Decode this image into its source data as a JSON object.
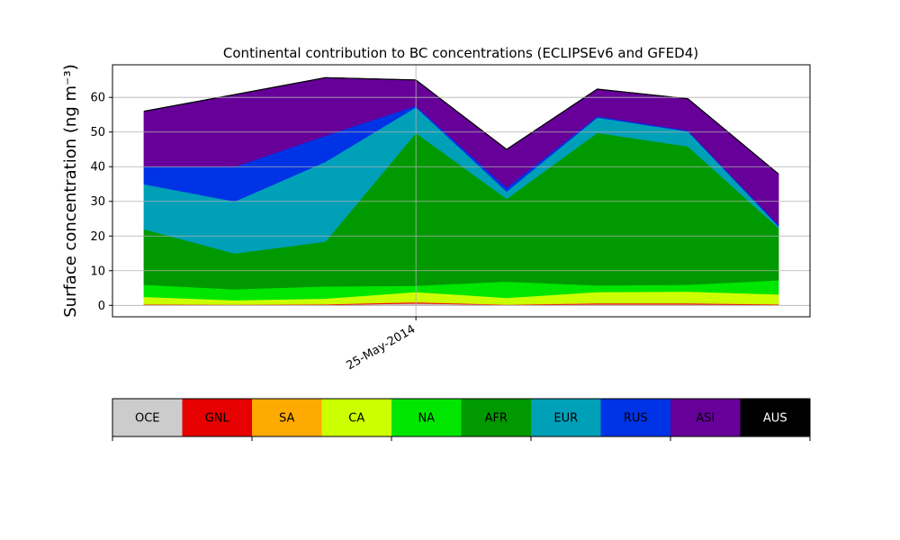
{
  "chart_data": {
    "type": "area",
    "title": "Continental contribution to BC concentrations (ECLIPSEv6 and GFED4)",
    "ylabel": "Surface concentration (ng m⁻³)",
    "xlabel": "",
    "x_tick_labels": [
      "25-May-2014"
    ],
    "ylim": [
      -3.3,
      69.4
    ],
    "y_ticks": [
      0,
      10,
      20,
      30,
      40,
      50,
      60
    ],
    "grid": true,
    "stacked": true,
    "series": [
      {
        "name": "OCE",
        "color": "#cccccc",
        "values": [
          0.2,
          0.1,
          0.1,
          0.6,
          0.1,
          0.3,
          0.3,
          0.1
        ]
      },
      {
        "name": "GNL",
        "color": "#e60000",
        "values": [
          0.1,
          0.1,
          0.2,
          0.3,
          0.1,
          0.3,
          0.3,
          0.2
        ]
      },
      {
        "name": "SA",
        "color": "#ffaa00",
        "values": [
          0.1,
          0.1,
          0.1,
          0.1,
          0.1,
          0.1,
          0.1,
          0.1
        ]
      },
      {
        "name": "CA",
        "color": "#ccff00",
        "values": [
          2.1,
          1.2,
          1.6,
          2.9,
          1.9,
          3.2,
          3.3,
          2.8
        ]
      },
      {
        "name": "NA",
        "color": "#00e600",
        "values": [
          3.5,
          3.2,
          3.5,
          1.8,
          4.7,
          1.9,
          2.0,
          4.1
        ]
      },
      {
        "name": "AFR",
        "color": "#009900",
        "values": [
          16.0,
          10.3,
          12.9,
          44.1,
          23.9,
          44.0,
          39.9,
          15.0
        ]
      },
      {
        "name": "EUR",
        "color": "#00a0b8",
        "values": [
          13.0,
          15.0,
          23.0,
          7.4,
          2.1,
          4.4,
          4.3,
          0.6
        ]
      },
      {
        "name": "RUS",
        "color": "#0033e6",
        "values": [
          5.0,
          10.0,
          7.6,
          0.4,
          1.1,
          0.4,
          0.3,
          0.4
        ]
      },
      {
        "name": "ASI",
        "color": "#660099",
        "values": [
          16.0,
          20.8,
          16.7,
          7.4,
          11.0,
          7.8,
          9.1,
          14.6
        ]
      },
      {
        "name": "AUS",
        "color": "#000000",
        "values": [
          0.0,
          0.0,
          0.0,
          0.0,
          0.0,
          0.0,
          0.0,
          0.0
        ]
      }
    ]
  }
}
